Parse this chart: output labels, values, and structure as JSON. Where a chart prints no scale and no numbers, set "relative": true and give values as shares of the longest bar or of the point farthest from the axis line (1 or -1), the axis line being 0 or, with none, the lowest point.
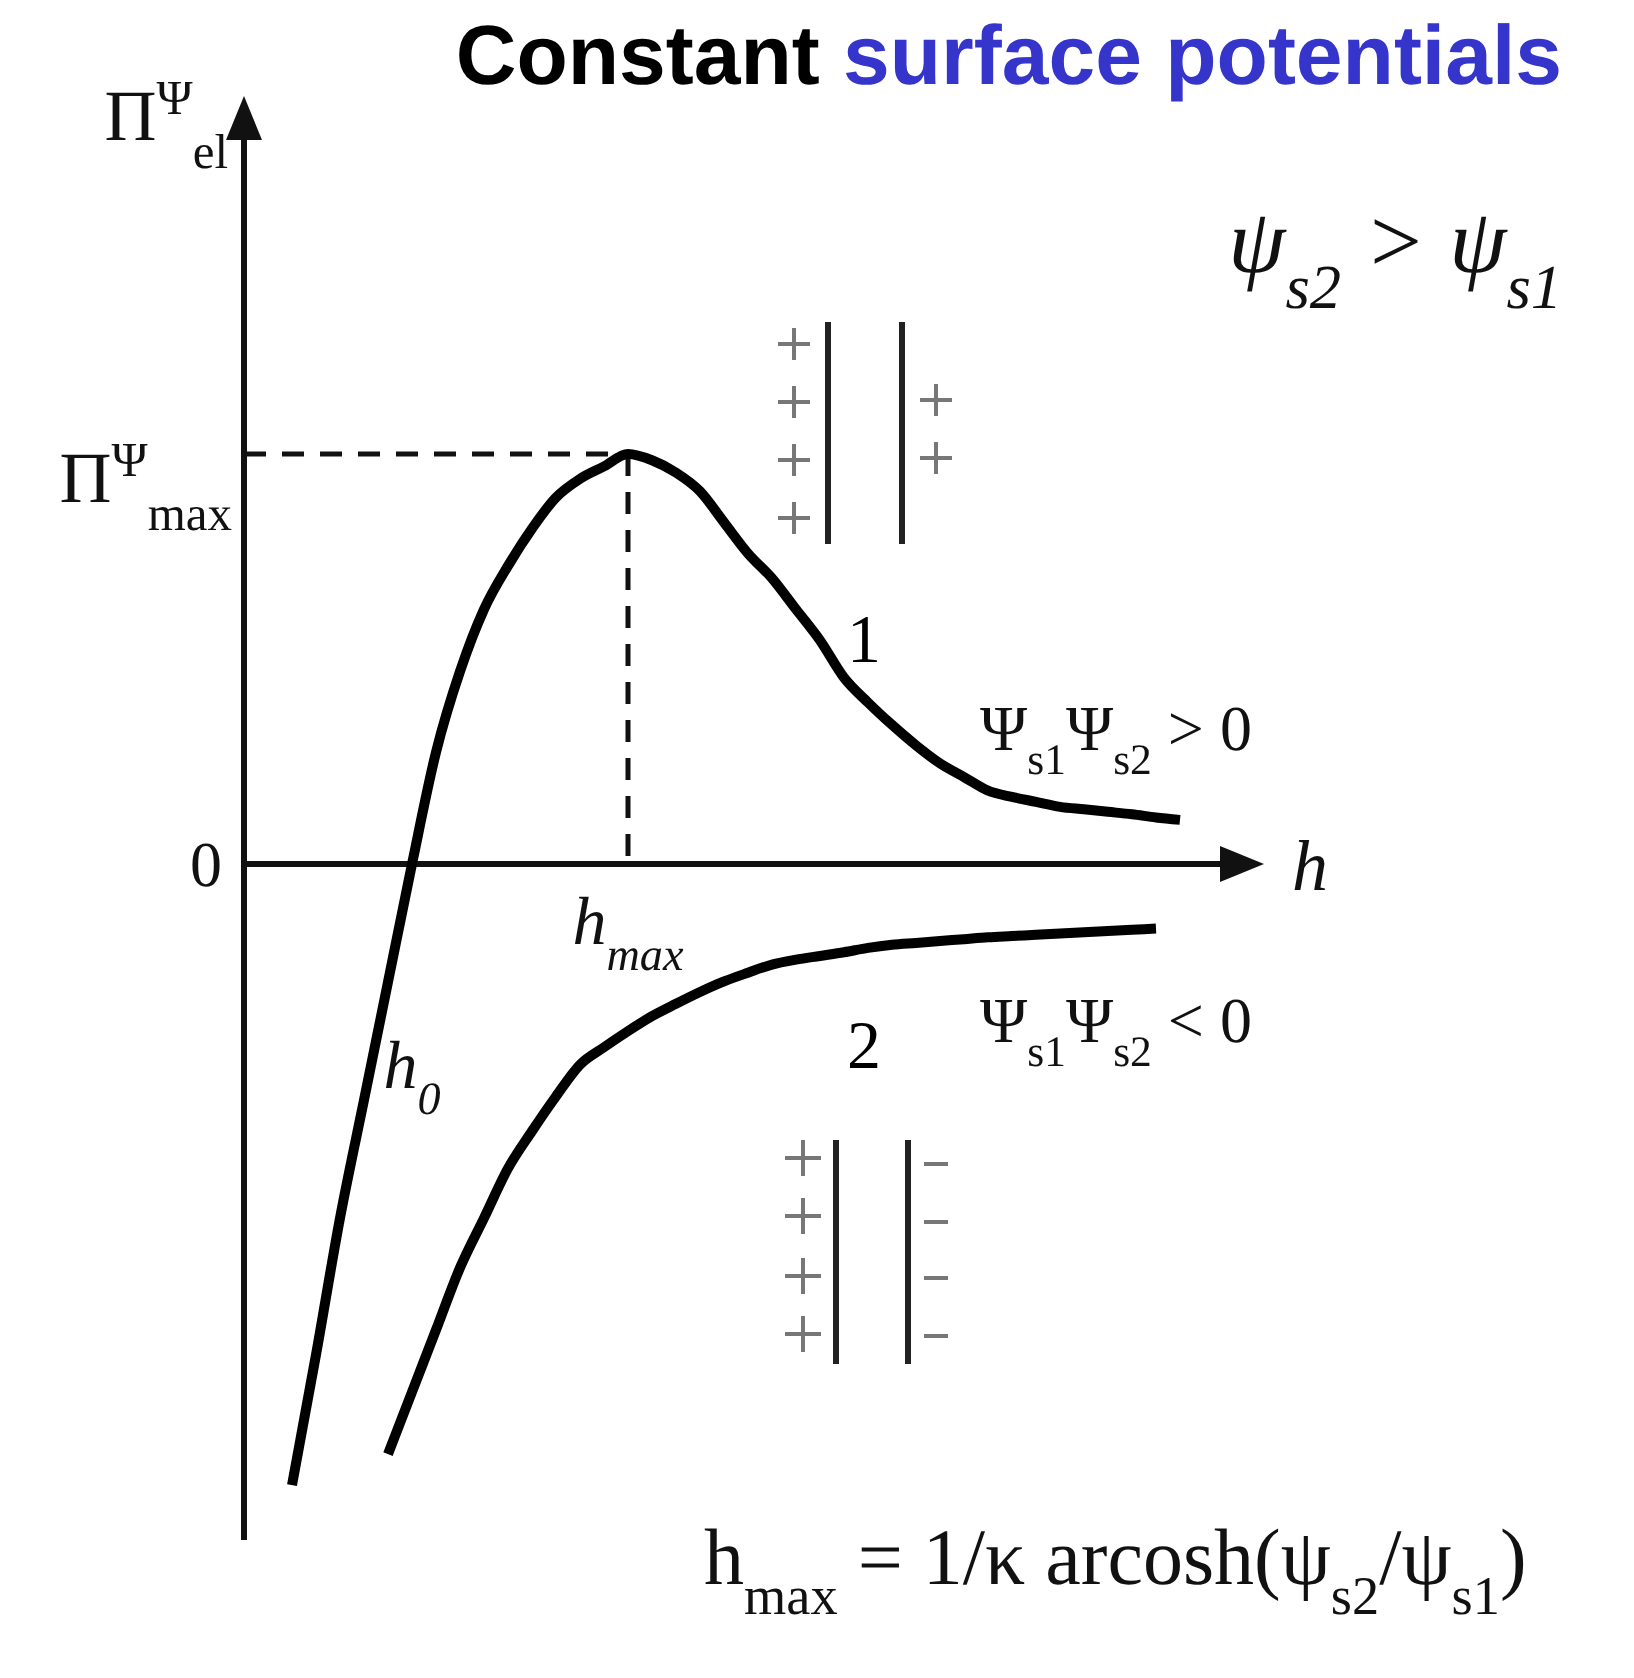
{
  "chart_data": {
    "type": "line",
    "title": "Constant surface potentials",
    "xlabel": "h",
    "ylabel": "Π$^{Ψ}$$_{el}$",
    "relative": true,
    "categories": [
      null,
      null,
      null,
      null,
      null,
      "h$_{0}$",
      null,
      null,
      null,
      null,
      null,
      null,
      null,
      null,
      "h$_{max}$",
      null,
      null,
      null,
      null,
      null,
      null,
      null,
      null,
      null,
      null,
      null,
      null,
      null,
      null,
      null,
      null,
      null,
      null,
      null,
      null,
      null,
      null,
      null
    ],
    "series": [
      {
        "name": "1",
        "color": "#000000",
        "values": [
          -1,
          -0.79,
          -0.57,
          -0.38,
          -0.19,
          0,
          0.18,
          0.31,
          0.41,
          0.48,
          0.54,
          0.59,
          0.62,
          0.64,
          0.66,
          0.65,
          0.63,
          0.6,
          0.55,
          0.5,
          0.46,
          0.41,
          0.36,
          0.3,
          0.26,
          0.224,
          0.191,
          0.162,
          0.14,
          0.118,
          0.108,
          0.1,
          0.092,
          0.088,
          0.084,
          0.08,
          0.075,
          0.071
        ]
      },
      {
        "name": "2",
        "color": "#000000",
        "values": [
          null,
          null,
          null,
          null,
          -0.95,
          -0.85,
          -0.75,
          -0.65,
          -0.57,
          -0.49,
          -0.43,
          -0.374,
          -0.323,
          -0.295,
          -0.269,
          -0.245,
          -0.225,
          -0.206,
          -0.189,
          -0.175,
          -0.162,
          -0.154,
          -0.148,
          -0.142,
          -0.135,
          -0.13,
          -0.127,
          -0.124,
          -0.121,
          -0.118,
          -0.116,
          -0.114,
          -0.112,
          -0.11,
          -0.108,
          -0.106,
          -0.104,
          null
        ]
      }
    ],
    "ref_lines": [
      {
        "axis": "y",
        "value": 0.66,
        "label": "Π$^{Ψ}$$_{max}$",
        "line_style": "dashed"
      },
      {
        "axis": "x",
        "value": "h$_{max}$",
        "line_style": "dashed"
      }
    ],
    "annotations": [
      "0",
      "ψ$_{s2}$ > ψ$_{s1}$",
      "Ψ$_{s1}$Ψ$_{s2}$ > 0",
      "Ψ$_{s1}$Ψ$_{s2}$ < 0",
      "h$_{max}$ = 1/κ arcosh(ψ$_{s2}$/ψ$_{s1}$)"
    ]
  }
}
